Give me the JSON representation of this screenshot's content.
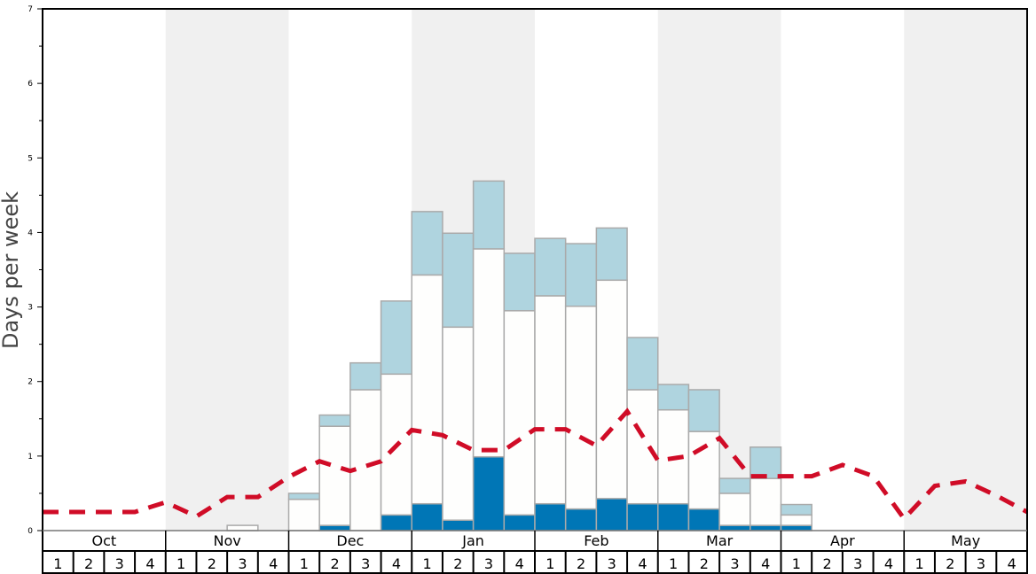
{
  "chart_data": {
    "type": "bar",
    "stacked": true,
    "ylabel": "Days per week",
    "xlabel": "",
    "ylim": [
      0,
      7
    ],
    "yticks": [
      "0",
      "1",
      "2",
      "3",
      "4",
      "5",
      "6",
      "7"
    ],
    "months": [
      "Oct",
      "Nov",
      "Dec",
      "Jan",
      "Feb",
      "Mar",
      "Apr",
      "May"
    ],
    "weeks": [
      "1",
      "2",
      "3",
      "4"
    ],
    "month_shading": [
      "white",
      "gray",
      "white",
      "gray",
      "white",
      "gray",
      "white",
      "gray"
    ],
    "series": [
      {
        "role": "bottom",
        "color": "#0076b6",
        "values": [
          0,
          0,
          0,
          0,
          0,
          0,
          0,
          0,
          0,
          0.07,
          0,
          0.21,
          0.36,
          0.14,
          0.99,
          0.21,
          0.36,
          0.29,
          0.43,
          0.36,
          0.36,
          0.29,
          0.07,
          0.07,
          0.07,
          0,
          0,
          0,
          0,
          0,
          0,
          0
        ]
      },
      {
        "role": "middle",
        "color": "#fefefd",
        "values": [
          0,
          0,
          0,
          0,
          0,
          0,
          0.07,
          0,
          0.42,
          1.33,
          1.89,
          1.89,
          3.07,
          2.59,
          2.79,
          2.74,
          2.79,
          2.72,
          2.93,
          1.53,
          1.26,
          1.04,
          0.43,
          0.63,
          0.14,
          0,
          0,
          0,
          0,
          0,
          0,
          0
        ]
      },
      {
        "role": "top",
        "color": "#afd4df",
        "values": [
          0,
          0,
          0,
          0,
          0,
          0,
          0,
          0,
          0.08,
          0.15,
          0.36,
          0.98,
          0.85,
          1.26,
          0.91,
          0.77,
          0.77,
          0.84,
          0.7,
          0.7,
          0.34,
          0.56,
          0.2,
          0.42,
          0.14,
          0,
          0,
          0,
          0,
          0,
          0,
          0
        ]
      }
    ],
    "line": {
      "style": "dashed",
      "color": "#d00c27",
      "values": [
        0.25,
        0.25,
        0.25,
        0.25,
        0.38,
        0.19,
        0.45,
        0.45,
        0.72,
        0.93,
        0.8,
        0.93,
        1.35,
        1.28,
        1.08,
        1.08,
        1.36,
        1.36,
        1.14,
        1.6,
        0.94,
        1.0,
        1.24,
        0.73,
        0.73,
        0.73,
        0.88,
        0.73,
        0.16,
        0.6,
        0.66,
        0.47,
        0.25
      ]
    },
    "grid": false,
    "legend": "none"
  }
}
